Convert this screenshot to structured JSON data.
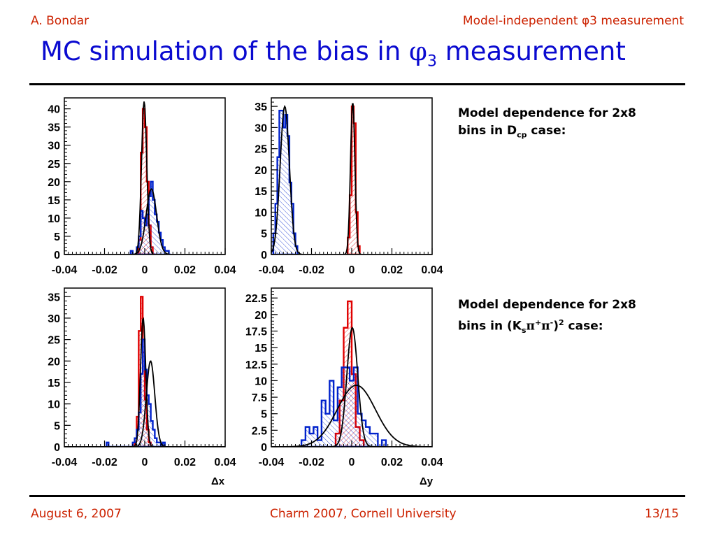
{
  "header": {
    "author": "A. Bondar",
    "topic": "Model-independent φ3 measurement"
  },
  "title": {
    "main": "MC simulation of the bias in ",
    "symbol": "φ",
    "sub": "3",
    "tail": " measurement"
  },
  "notes": [
    {
      "line1": "Model dependence for 2x8",
      "line2_pre": "bins in D",
      "line2_sub": "cp",
      "line2_post": " case:"
    },
    {
      "line1": "Model dependence for 2x8",
      "line2_pre": "bins  in (K",
      "line2_sub": "s",
      "line2_pi1": "π",
      "line2_sup1": "+",
      "line2_pi2": "π",
      "line2_sup2": "-",
      "line2_post": ")",
      "line2_sup3": "2",
      "line2_post2": " case:"
    }
  ],
  "axis_labels": {
    "x_left": "Δx",
    "x_right": "Δy"
  },
  "footer": {
    "date": "August 6, 2007",
    "event": "Charm 2007, Cornell University",
    "page": "13/15"
  },
  "colors": {
    "red_hist": "#e00000",
    "blue_hist": "#0022cc",
    "fit_curve": "#000000",
    "title_blue": "#0a0ad0",
    "header_red": "#cc2200"
  },
  "chart_data": [
    {
      "type": "histogram",
      "title": "",
      "xlabel": "",
      "ylabel": "",
      "xlim": [
        -0.04,
        0.04
      ],
      "ylim": [
        0,
        43
      ],
      "xticks": [
        "-0.04",
        "-0.02",
        "0",
        "0.02",
        "0.04"
      ],
      "yticks": [
        "0",
        "5",
        "10",
        "15",
        "20",
        "25",
        "30",
        "35",
        "40"
      ],
      "series": [
        {
          "color": "red",
          "bin_width": 0.001,
          "x_start": -0.004,
          "counts": [
            0,
            4,
            28,
            40,
            35,
            20,
            8,
            2,
            0,
            0
          ]
        },
        {
          "color": "blue",
          "bin_width": 0.001,
          "x_start": -0.007,
          "counts": [
            1,
            0,
            0,
            2,
            5,
            12,
            10,
            8,
            11,
            16,
            20,
            15,
            11,
            9,
            6,
            4,
            2,
            1,
            1,
            0
          ]
        }
      ],
      "fits": [
        {
          "color": "black",
          "amplitude": 42,
          "mean": -0.0003,
          "sigma": 0.0013
        },
        {
          "color": "black",
          "amplitude": 18,
          "mean": 0.0033,
          "sigma": 0.0026
        }
      ]
    },
    {
      "type": "histogram",
      "title": "",
      "xlabel": "",
      "ylabel": "",
      "xlim": [
        -0.04,
        0.04
      ],
      "ylim": [
        0,
        37
      ],
      "xticks": [
        "-0.04",
        "-0.02",
        "0",
        "0.02",
        "0.04"
      ],
      "yticks": [
        "0",
        "5",
        "10",
        "15",
        "20",
        "25",
        "30",
        "35"
      ],
      "series": [
        {
          "color": "blue",
          "bin_width": 0.001,
          "x_start": -0.039,
          "counts": [
            5,
            12,
            23,
            34,
            34,
            30,
            33,
            28,
            17,
            12,
            5,
            2
          ]
        },
        {
          "color": "red",
          "bin_width": 0.001,
          "x_start": -0.002,
          "counts": [
            4,
            14,
            35,
            31,
            10,
            2
          ]
        }
      ],
      "fits": [
        {
          "color": "black",
          "amplitude": 35,
          "mean": -0.0333,
          "sigma": 0.0023
        },
        {
          "color": "black",
          "amplitude": 36,
          "mean": 0.0005,
          "sigma": 0.0011
        }
      ]
    },
    {
      "type": "histogram",
      "title": "",
      "xlabel": "Δx",
      "ylabel": "",
      "xlim": [
        -0.04,
        0.04
      ],
      "ylim": [
        0,
        37
      ],
      "xticks": [
        "-0.04",
        "-0.02",
        "0",
        "0.02",
        "0.04"
      ],
      "yticks": [
        "0",
        "5",
        "10",
        "15",
        "20",
        "25",
        "30",
        "35"
      ],
      "series": [
        {
          "color": "red",
          "bin_width": 0.001,
          "x_start": -0.005,
          "counts": [
            2,
            7,
            27,
            35,
            22,
            11,
            4,
            1
          ]
        },
        {
          "color": "blue",
          "bin_width": 0.001,
          "x_start": -0.019,
          "counts": [
            1,
            0,
            0,
            0,
            0,
            0,
            0,
            0,
            0,
            0,
            0,
            0,
            0,
            1,
            2,
            4,
            8,
            17,
            25,
            18,
            12,
            10,
            6,
            4,
            2,
            1,
            1,
            0,
            1
          ]
        }
      ],
      "fits": [
        {
          "color": "black",
          "amplitude": 30,
          "mean": -0.0008,
          "sigma": 0.0013
        },
        {
          "color": "black",
          "amplitude": 20,
          "mean": 0.0029,
          "sigma": 0.0021
        }
      ]
    },
    {
      "type": "histogram",
      "title": "",
      "xlabel": "Δy",
      "ylabel": "",
      "xlim": [
        -0.04,
        0.04
      ],
      "ylim": [
        0,
        24
      ],
      "xticks": [
        "-0.04",
        "-0.02",
        "0",
        "0.02",
        "0.04"
      ],
      "yticks": [
        "0",
        "2.5",
        "5",
        "7.5",
        "10",
        "12.5",
        "15",
        "17.5",
        "20",
        "22.5"
      ],
      "series": [
        {
          "color": "red",
          "bin_width": 0.002,
          "x_start": -0.008,
          "counts": [
            2,
            7,
            18,
            22,
            11,
            3,
            1
          ]
        },
        {
          "color": "blue",
          "bin_width": 0.002,
          "x_start": -0.025,
          "counts": [
            1,
            3,
            2,
            3,
            1,
            7,
            5,
            10,
            4,
            9,
            12,
            12,
            10,
            12,
            5,
            4,
            3,
            2,
            2,
            0,
            1
          ]
        }
      ],
      "fits": [
        {
          "color": "black",
          "amplitude": 18,
          "mean": 0.0003,
          "sigma": 0.0027
        },
        {
          "color": "black",
          "amplitude": 9.3,
          "mean": 0.0023,
          "sigma": 0.0095
        }
      ]
    }
  ]
}
